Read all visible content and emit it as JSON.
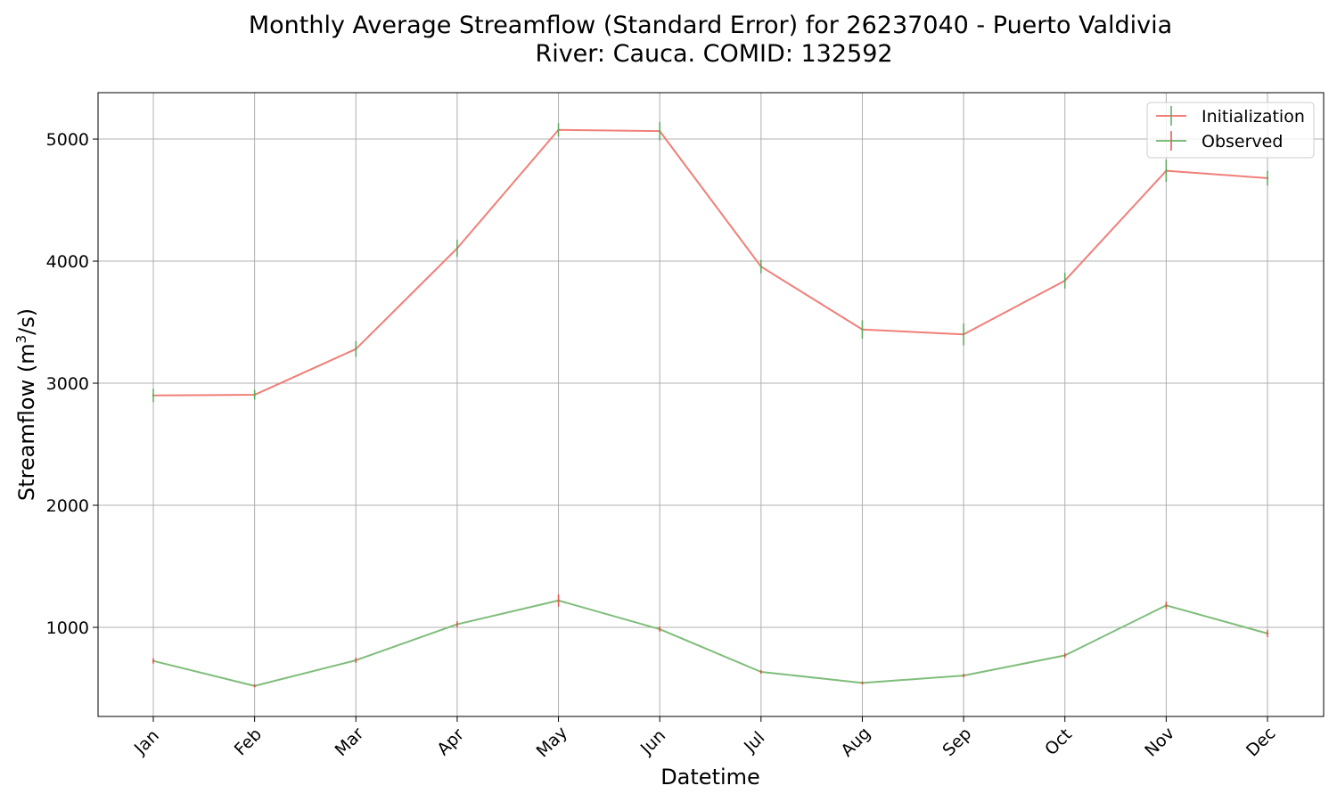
{
  "chart_data": {
    "type": "line",
    "title": "Monthly Average Streamflow (Standard Error) for 26237040 - Puerto Valdivia",
    "subtitle": "River: Cauca. COMID: 132592",
    "xlabel": "Datetime",
    "ylabel": "Streamflow (m",
    "ylabel_sup": "3",
    "ylabel_tail": "/s)",
    "categories": [
      "Jan",
      "Feb",
      "Mar",
      "Apr",
      "May",
      "Jun",
      "Jul",
      "Aug",
      "Sep",
      "Oct",
      "Nov",
      "Dec"
    ],
    "ylim": [
      270,
      5380
    ],
    "yticks": [
      1000,
      2000,
      3000,
      4000,
      5000
    ],
    "grid": true,
    "legend_position": "top-right",
    "series": [
      {
        "name": "Initialization",
        "color": "#f07f78",
        "errorbar_color": "#5aa85a",
        "values": [
          2900,
          2905,
          3280,
          4105,
          5075,
          5065,
          3955,
          3440,
          3400,
          3840,
          4740,
          4680
        ],
        "errors": [
          55,
          40,
          65,
          70,
          55,
          75,
          55,
          75,
          90,
          65,
          90,
          60
        ]
      },
      {
        "name": "Observed",
        "color": "#7fbd7a",
        "errorbar_color": "#e0564a",
        "values": [
          725,
          520,
          730,
          1025,
          1220,
          985,
          635,
          545,
          605,
          770,
          1180,
          950
        ],
        "errors": [
          22,
          12,
          22,
          25,
          50,
          22,
          15,
          12,
          15,
          20,
          30,
          30
        ]
      }
    ]
  }
}
